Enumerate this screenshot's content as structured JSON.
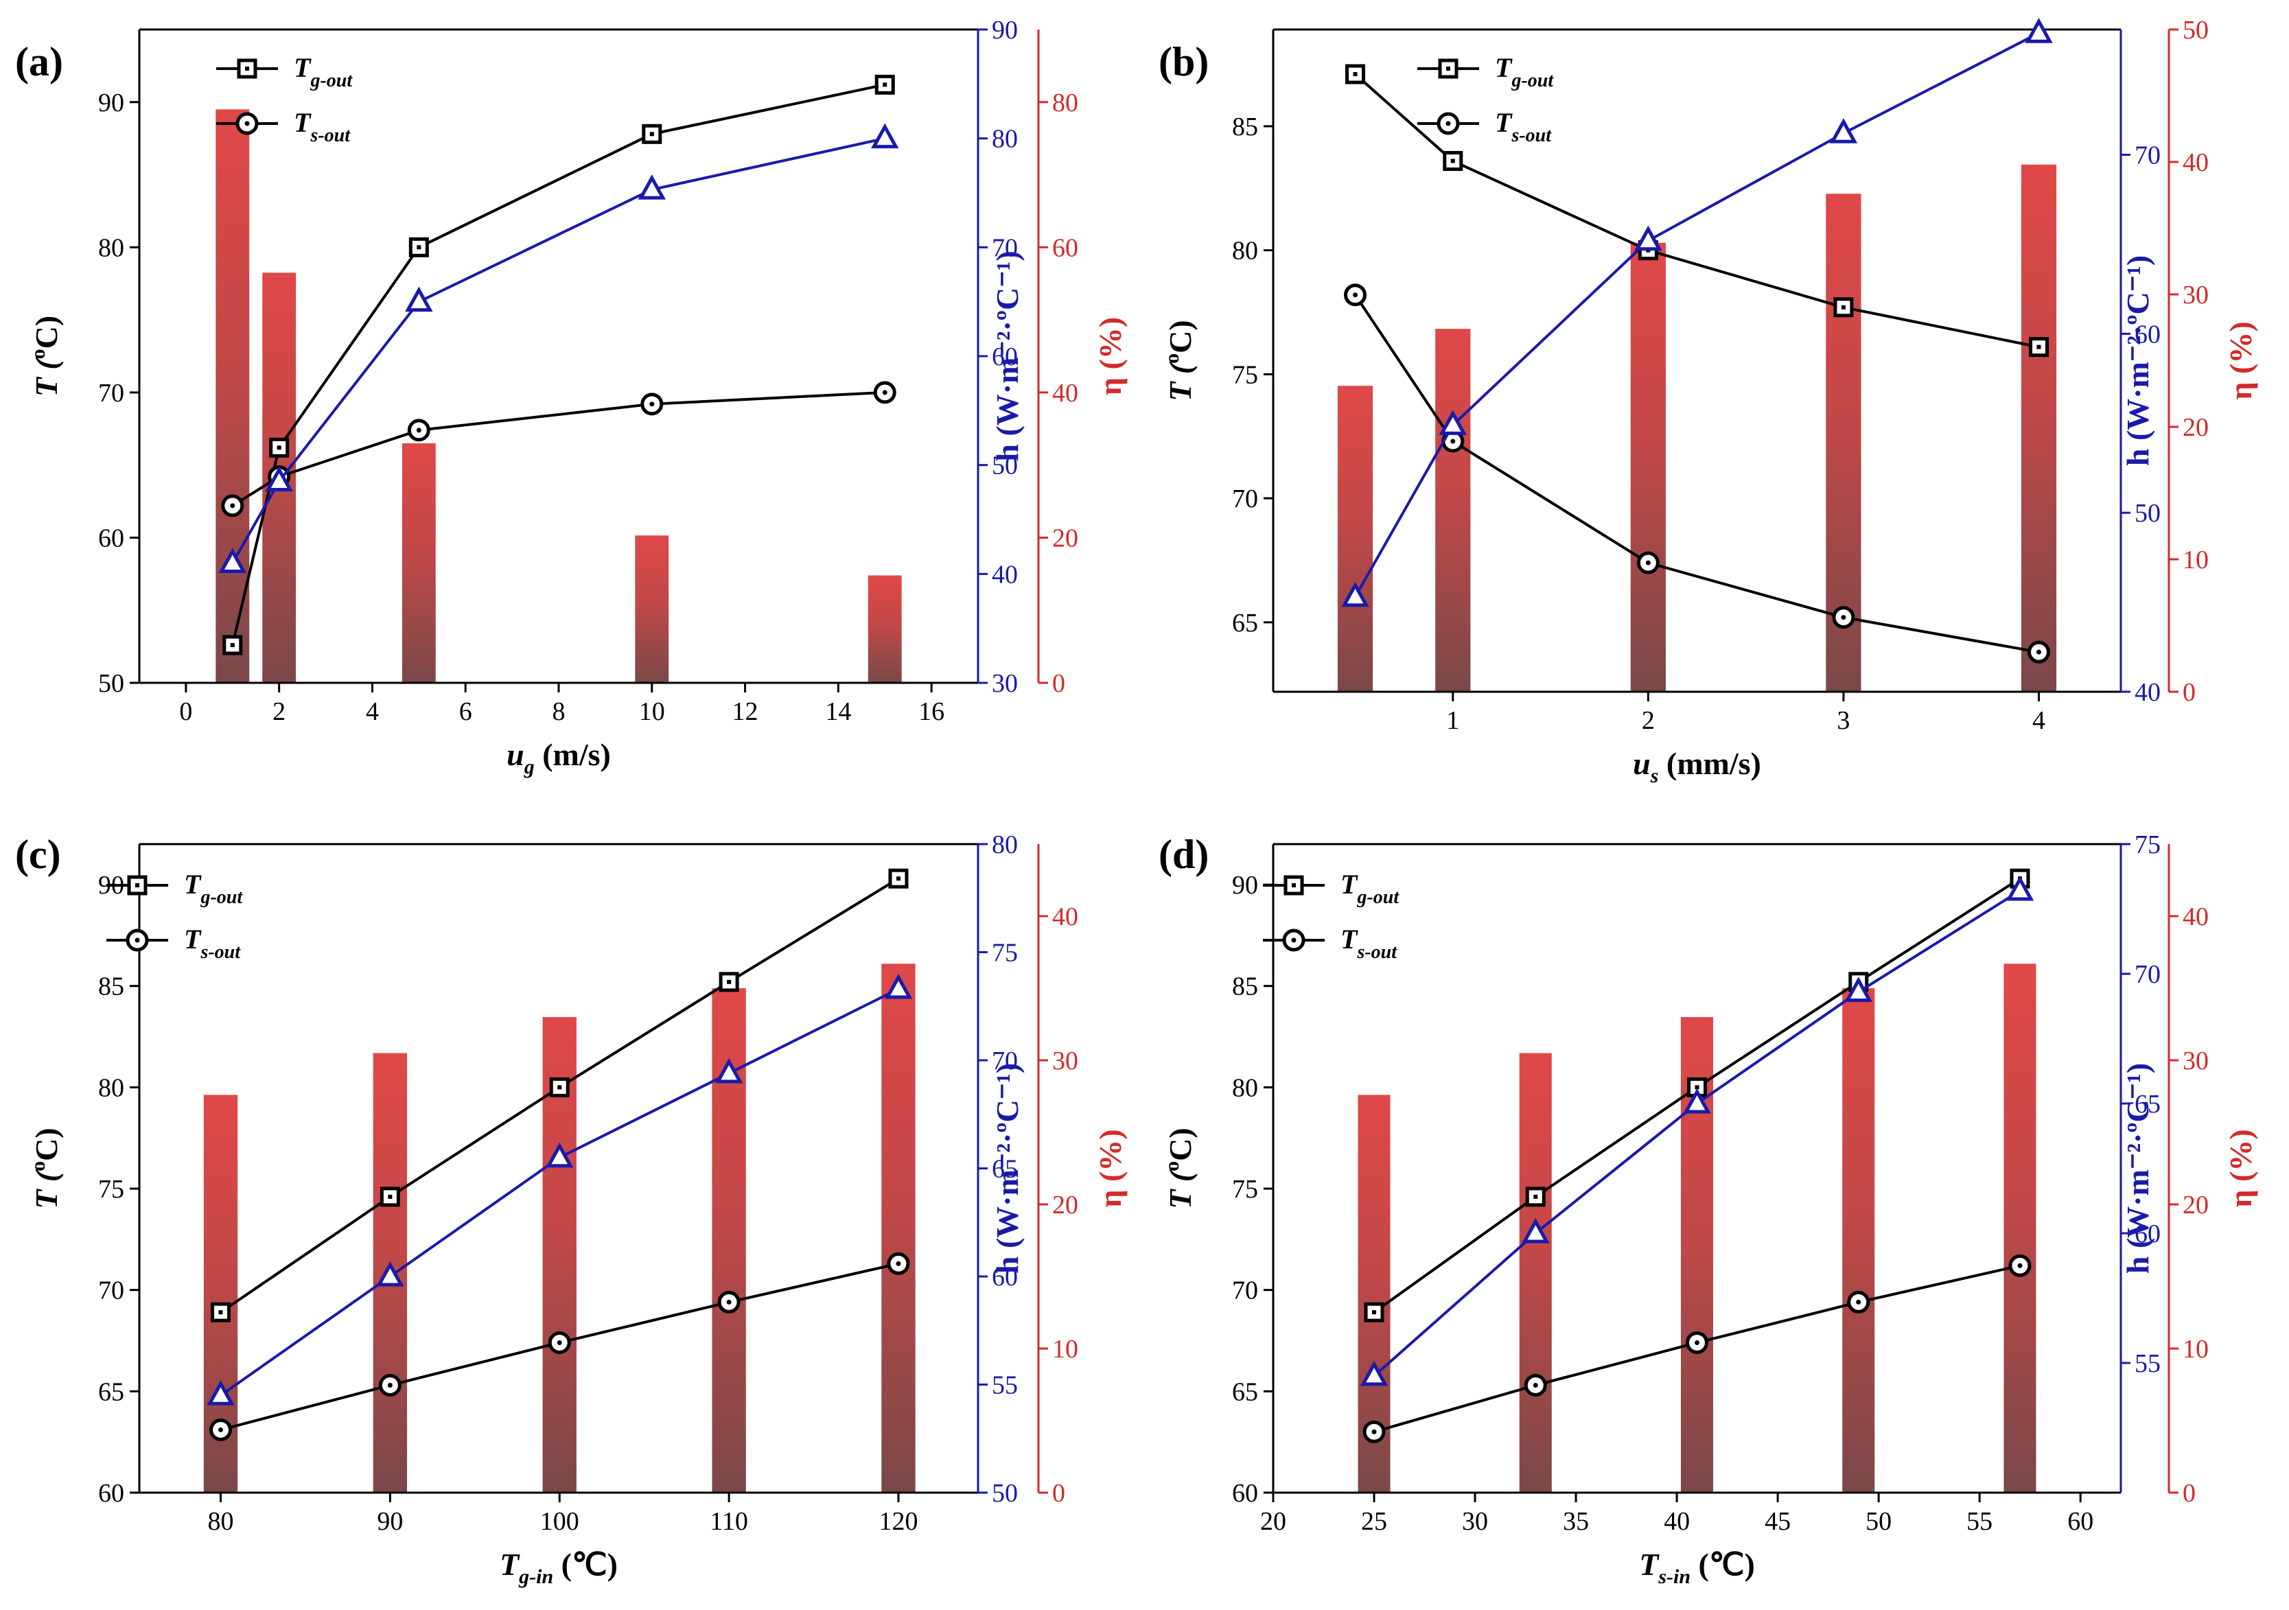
{
  "colors": {
    "black": "#000000",
    "blue": "#1a1aaa",
    "red": "#d42a2a",
    "bar_top": "#e04848",
    "bar_bottom": "#7a4848"
  },
  "chart_data": [
    {
      "panel": "(a)",
      "type": "bar+line",
      "x": [
        1,
        2,
        5,
        10,
        15
      ],
      "x_numeric": true,
      "x_ticks": [
        "0",
        "2",
        "4",
        "6",
        "8",
        "10",
        "12",
        "14",
        "16"
      ],
      "xlim": [
        -1,
        17
      ],
      "xlabel_main": "u",
      "xlabel_sub": "g",
      "xlabel_rest": " (m/s)",
      "bar_width": 0.72,
      "left_axis": {
        "ylim": [
          50,
          95
        ],
        "ticks": [
          50,
          60,
          70,
          80,
          90
        ],
        "label_main": "T",
        "label_sup": "o",
        "label_rest": "C)"
      },
      "right1_axis": {
        "ylim": [
          30,
          90
        ],
        "ticks": [
          30,
          40,
          50,
          60,
          70,
          80,
          90
        ],
        "label": "h (W·m⁻²·ºC⁻¹)"
      },
      "right2_axis": {
        "ylim": [
          0,
          90
        ],
        "ticks": [
          0,
          20,
          40,
          60,
          80
        ],
        "label": "η (%)"
      },
      "series": [
        {
          "name": "T_g-out",
          "label_main": "T",
          "label_sub": "g-out",
          "axis": "left",
          "marker": "square-dot",
          "color": "#000000",
          "values": [
            52.6,
            66.2,
            80.0,
            87.8,
            91.2
          ]
        },
        {
          "name": "T_s-out",
          "label_main": "T",
          "label_sub": "s-out",
          "axis": "left",
          "marker": "circle-dot",
          "color": "#000000",
          "values": [
            62.2,
            64.2,
            67.4,
            69.2,
            70.0
          ]
        },
        {
          "axis": "right1",
          "marker": "triangle",
          "color": "#1a1aaa",
          "values": [
            41.0,
            48.5,
            65.0,
            75.3,
            80.0
          ]
        },
        {
          "axis": "right2",
          "kind": "bar",
          "values": [
            79.0,
            56.5,
            33.0,
            20.3,
            14.8
          ]
        }
      ]
    },
    {
      "panel": "(b)",
      "type": "bar+line",
      "x": [
        0.5,
        1,
        2,
        3,
        4
      ],
      "x_numeric": true,
      "x_ticks": [
        "1",
        "2",
        "3",
        "4"
      ],
      "xlim": [
        0.08,
        4.42
      ],
      "xlabel_main": "u",
      "xlabel_sub": "s",
      "xlabel_rest": " (mm/s)",
      "bar_width": 0.18,
      "left_axis": {
        "ylim": [
          62.2,
          88.9
        ],
        "ticks": [
          65,
          70,
          75,
          80,
          85
        ],
        "label_main": "T",
        "label_sup": "o",
        "label_rest": "C)"
      },
      "right1_axis": {
        "ylim": [
          40,
          77
        ],
        "ticks": [
          40,
          50,
          60,
          70
        ],
        "label": "h (W·m⁻²·ºC⁻¹)"
      },
      "right2_axis": {
        "ylim": [
          0,
          50
        ],
        "ticks": [
          0,
          10,
          20,
          30,
          40,
          50
        ],
        "label": "η (%)"
      },
      "series": [
        {
          "name": "T_g-out",
          "label_main": "T",
          "label_sub": "g-out",
          "axis": "left",
          "marker": "square-dot",
          "color": "#000000",
          "values": [
            87.1,
            83.6,
            80.0,
            77.7,
            76.1
          ]
        },
        {
          "name": "T_s-out",
          "label_main": "T",
          "label_sub": "s-out",
          "axis": "left",
          "marker": "circle-dot",
          "color": "#000000",
          "values": [
            78.2,
            72.3,
            67.4,
            65.2,
            63.8
          ]
        },
        {
          "axis": "right1",
          "marker": "triangle",
          "color": "#1a1aaa",
          "values": [
            45.3,
            54.9,
            65.2,
            71.2,
            76.8
          ]
        },
        {
          "axis": "right2",
          "kind": "bar",
          "values": [
            23.1,
            27.4,
            33.9,
            37.6,
            39.8
          ]
        }
      ]
    },
    {
      "panel": "(c)",
      "type": "bar+line",
      "x": [
        80,
        90,
        100,
        110,
        120
      ],
      "x_numeric": true,
      "x_ticks": [
        "80",
        "90",
        "100",
        "110",
        "120"
      ],
      "xlim": [
        75.2,
        124.7
      ],
      "xlabel_main": "T",
      "xlabel_sub": "g-in",
      "xlabel_rest": " (℃)",
      "bar_width": 2.0,
      "left_axis": {
        "ylim": [
          60,
          92
        ],
        "ticks": [
          60,
          65,
          70,
          75,
          80,
          85,
          90
        ],
        "label_main": "T",
        "label_sup": "o",
        "label_rest": "C)"
      },
      "right1_axis": {
        "ylim": [
          50,
          80
        ],
        "ticks": [
          50,
          55,
          60,
          65,
          70,
          75,
          80
        ],
        "label": "h (W·m⁻²·ºC⁻¹)"
      },
      "right2_axis": {
        "ylim": [
          0,
          45
        ],
        "ticks": [
          0,
          10,
          20,
          30,
          40
        ],
        "label": "η (%)"
      },
      "series": [
        {
          "name": "T_g-out",
          "label_main": "T",
          "label_sub": "g-out",
          "axis": "left",
          "marker": "square-dot",
          "color": "#000000",
          "values": [
            68.9,
            74.6,
            80.0,
            85.2,
            90.3
          ]
        },
        {
          "name": "T_s-out",
          "label_main": "T",
          "label_sub": "s-out",
          "axis": "left",
          "marker": "circle-dot",
          "color": "#000000",
          "values": [
            63.1,
            65.3,
            67.4,
            69.4,
            71.3
          ]
        },
        {
          "axis": "right1",
          "marker": "triangle",
          "color": "#1a1aaa",
          "values": [
            54.5,
            60.0,
            65.5,
            69.4,
            73.3
          ]
        },
        {
          "axis": "right2",
          "kind": "bar",
          "values": [
            27.6,
            30.5,
            33.0,
            35.0,
            36.7
          ]
        }
      ]
    },
    {
      "panel": "(d)",
      "type": "bar+line",
      "x": [
        25,
        33,
        41,
        49,
        57
      ],
      "x_numeric": true,
      "x_ticks": [
        "20",
        "25",
        "30",
        "35",
        "40",
        "45",
        "50",
        "55",
        "60"
      ],
      "xlim": [
        20,
        62
      ],
      "xlabel_main": "T",
      "xlabel_sub": "s-in",
      "xlabel_rest": " (℃)",
      "bar_width": 1.6,
      "left_axis": {
        "ylim": [
          60,
          92
        ],
        "ticks": [
          60,
          65,
          70,
          75,
          80,
          85,
          90
        ],
        "label_main": "T",
        "label_sup": "o",
        "label_rest": "C)"
      },
      "right1_axis": {
        "ylim": [
          50,
          75
        ],
        "ticks": [
          55,
          60,
          65,
          70,
          75
        ],
        "label": "h (W·m⁻²·ºC⁻¹)"
      },
      "right2_axis": {
        "ylim": [
          0,
          45
        ],
        "ticks": [
          0,
          10,
          20,
          30,
          40
        ],
        "label": "η (%)"
      },
      "series": [
        {
          "name": "T_g-out",
          "label_main": "T",
          "label_sub": "g-out",
          "axis": "left",
          "marker": "square-dot",
          "color": "#000000",
          "values": [
            68.9,
            74.6,
            80.0,
            85.2,
            90.3
          ]
        },
        {
          "name": "T_s-out",
          "label_main": "T",
          "label_sub": "s-out",
          "axis": "left",
          "marker": "circle-dot",
          "color": "#000000",
          "values": [
            63.0,
            65.3,
            67.4,
            69.4,
            71.2
          ]
        },
        {
          "axis": "right1",
          "marker": "triangle",
          "color": "#1a1aaa",
          "values": [
            54.5,
            60.0,
            65.0,
            69.3,
            73.2
          ]
        },
        {
          "axis": "right2",
          "kind": "bar",
          "values": [
            27.6,
            30.5,
            33.0,
            35.0,
            36.7
          ]
        }
      ]
    }
  ]
}
